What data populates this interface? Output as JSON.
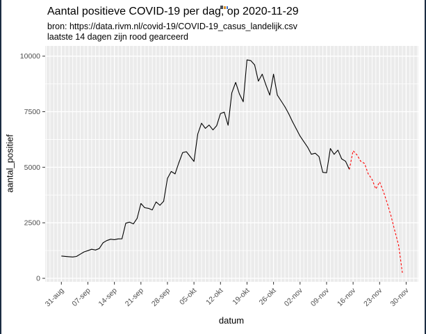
{
  "window": {
    "border_color": "#1b2c42",
    "background": "#ffffff"
  },
  "header": {
    "title": "Aantal positieve COVID-19 per dag, op 2020-11-29",
    "subtitle_line1": "bron: https://data.rivm.nl/covid-19/COVID-19_casus_landelijk.csv",
    "subtitle_line2": "laatste 14 dagen zijn rood gearceerd"
  },
  "chart_data": {
    "type": "line",
    "title": "Aantal positieve COVID-19 per dag, op 2020-11-29",
    "xlabel": "datum",
    "ylabel": "aantal_positief",
    "x_unit": "day (0 = 31-aug-2020)",
    "ylim": [
      0,
      10000
    ],
    "y_ticks": [
      0,
      2500,
      5000,
      7500,
      10000
    ],
    "x_ticks": [
      {
        "day": 0,
        "label": "31-aug"
      },
      {
        "day": 7,
        "label": "07-sep"
      },
      {
        "day": 14,
        "label": "14-sep"
      },
      {
        "day": 21,
        "label": "21-sep"
      },
      {
        "day": 28,
        "label": "28-sep"
      },
      {
        "day": 35,
        "label": "05-okt"
      },
      {
        "day": 42,
        "label": "12-okt"
      },
      {
        "day": 49,
        "label": "19-okt"
      },
      {
        "day": 56,
        "label": "26-okt"
      },
      {
        "day": 63,
        "label": "02-nov"
      },
      {
        "day": 70,
        "label": "09-nov"
      },
      {
        "day": 77,
        "label": "16-nov"
      },
      {
        "day": 84,
        "label": "23-nov"
      },
      {
        "day": 91,
        "label": "30-nov"
      }
    ],
    "panel": {
      "background": "#ebebeb",
      "gridline_color": "#ffffff",
      "tick_color": "#333333",
      "tick_label_color": "#4d4d4d",
      "daily_minor_gridlines": true
    },
    "legend": "none",
    "series": [
      {
        "name": "aantal-positief-definitief",
        "color": "#000000",
        "dash": "solid",
        "start_day": 0,
        "values": [
          1005,
          990,
          975,
          960,
          985,
          1090,
          1190,
          1245,
          1310,
          1275,
          1340,
          1600,
          1700,
          1760,
          1740,
          1775,
          1780,
          2480,
          2530,
          2450,
          2700,
          3370,
          3180,
          3150,
          3080,
          3440,
          3290,
          3470,
          4500,
          4810,
          4700,
          5200,
          5660,
          5700,
          5480,
          5260,
          6500,
          6980,
          6750,
          6900,
          6680,
          6870,
          7420,
          7480,
          6890,
          8350,
          8820,
          8300,
          7950,
          9830,
          9800,
          9605,
          8875,
          9190,
          8700,
          8245,
          9190,
          8245,
          7985,
          7720,
          7410,
          7050,
          6730,
          6400,
          6150,
          5900,
          5585,
          5630,
          5480,
          4770,
          4750,
          5845,
          5580,
          5770,
          5375,
          5270,
          4905
        ]
      },
      {
        "name": "laatste-14-dagen-rood",
        "color": "#ff0000",
        "dash": "dashed",
        "start_day": 76,
        "values": [
          4905,
          5740,
          5560,
          5270,
          5170,
          4700,
          4450,
          4020,
          4340,
          3910,
          3390,
          2820,
          2140,
          1510,
          250
        ]
      }
    ]
  },
  "artifact": {
    "description": "tiny clipped glyphs at top edge of screenshot",
    "colors": [
      "#4a4f57",
      "#d9902a",
      "#3a6fc9"
    ]
  }
}
